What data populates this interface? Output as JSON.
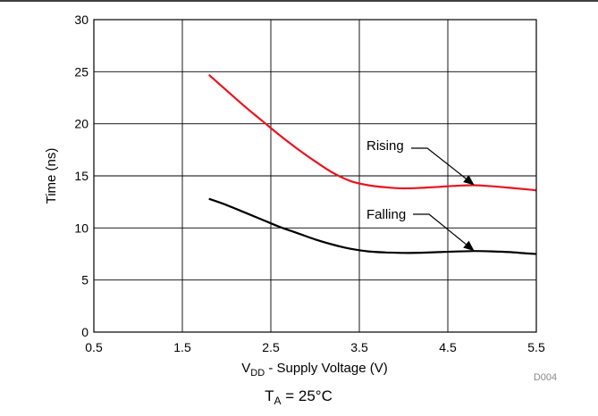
{
  "chart_data": {
    "type": "line",
    "xlabel_main": "V",
    "xlabel_sub": "DD",
    "xlabel_rest": " - Supply Voltage (V)",
    "ylabel": "Time (ns)",
    "xlim": [
      0.5,
      5.5
    ],
    "ylim": [
      0,
      30
    ],
    "xticks": [
      "0.5",
      "1.5",
      "2.5",
      "3.5",
      "4.5",
      "5.5"
    ],
    "yticks": [
      "0",
      "5",
      "10",
      "15",
      "20",
      "25",
      "30"
    ],
    "grid": true,
    "series": [
      {
        "name": "Rising",
        "color": "#e8141e",
        "x": [
          1.8,
          2.0,
          2.2,
          2.4,
          2.6,
          2.8,
          3.0,
          3.2,
          3.4,
          3.6,
          3.8,
          4.0,
          4.2,
          4.4,
          4.6,
          4.8,
          5.0,
          5.2,
          5.4,
          5.5
        ],
        "y": [
          24.7,
          23.2,
          21.7,
          20.3,
          18.9,
          17.6,
          16.4,
          15.3,
          14.5,
          14.1,
          13.9,
          13.8,
          13.85,
          13.95,
          14.05,
          14.1,
          14.0,
          13.85,
          13.7,
          13.6
        ]
      },
      {
        "name": "Falling",
        "color": "#000000",
        "x": [
          1.8,
          2.0,
          2.2,
          2.4,
          2.6,
          2.8,
          3.0,
          3.2,
          3.4,
          3.6,
          3.8,
          4.0,
          4.2,
          4.4,
          4.6,
          4.8,
          5.0,
          5.2,
          5.4,
          5.5
        ],
        "y": [
          12.8,
          12.2,
          11.5,
          10.8,
          10.1,
          9.5,
          8.9,
          8.4,
          8.0,
          7.75,
          7.65,
          7.6,
          7.62,
          7.68,
          7.74,
          7.78,
          7.75,
          7.68,
          7.55,
          7.5
        ]
      }
    ],
    "annotations": [
      {
        "text": "Rising",
        "series": 0
      },
      {
        "text": "Falling",
        "series": 1
      }
    ],
    "code": "D004"
  },
  "caption": {
    "main": "T",
    "sub": "A",
    "rest": " = 25°C"
  }
}
